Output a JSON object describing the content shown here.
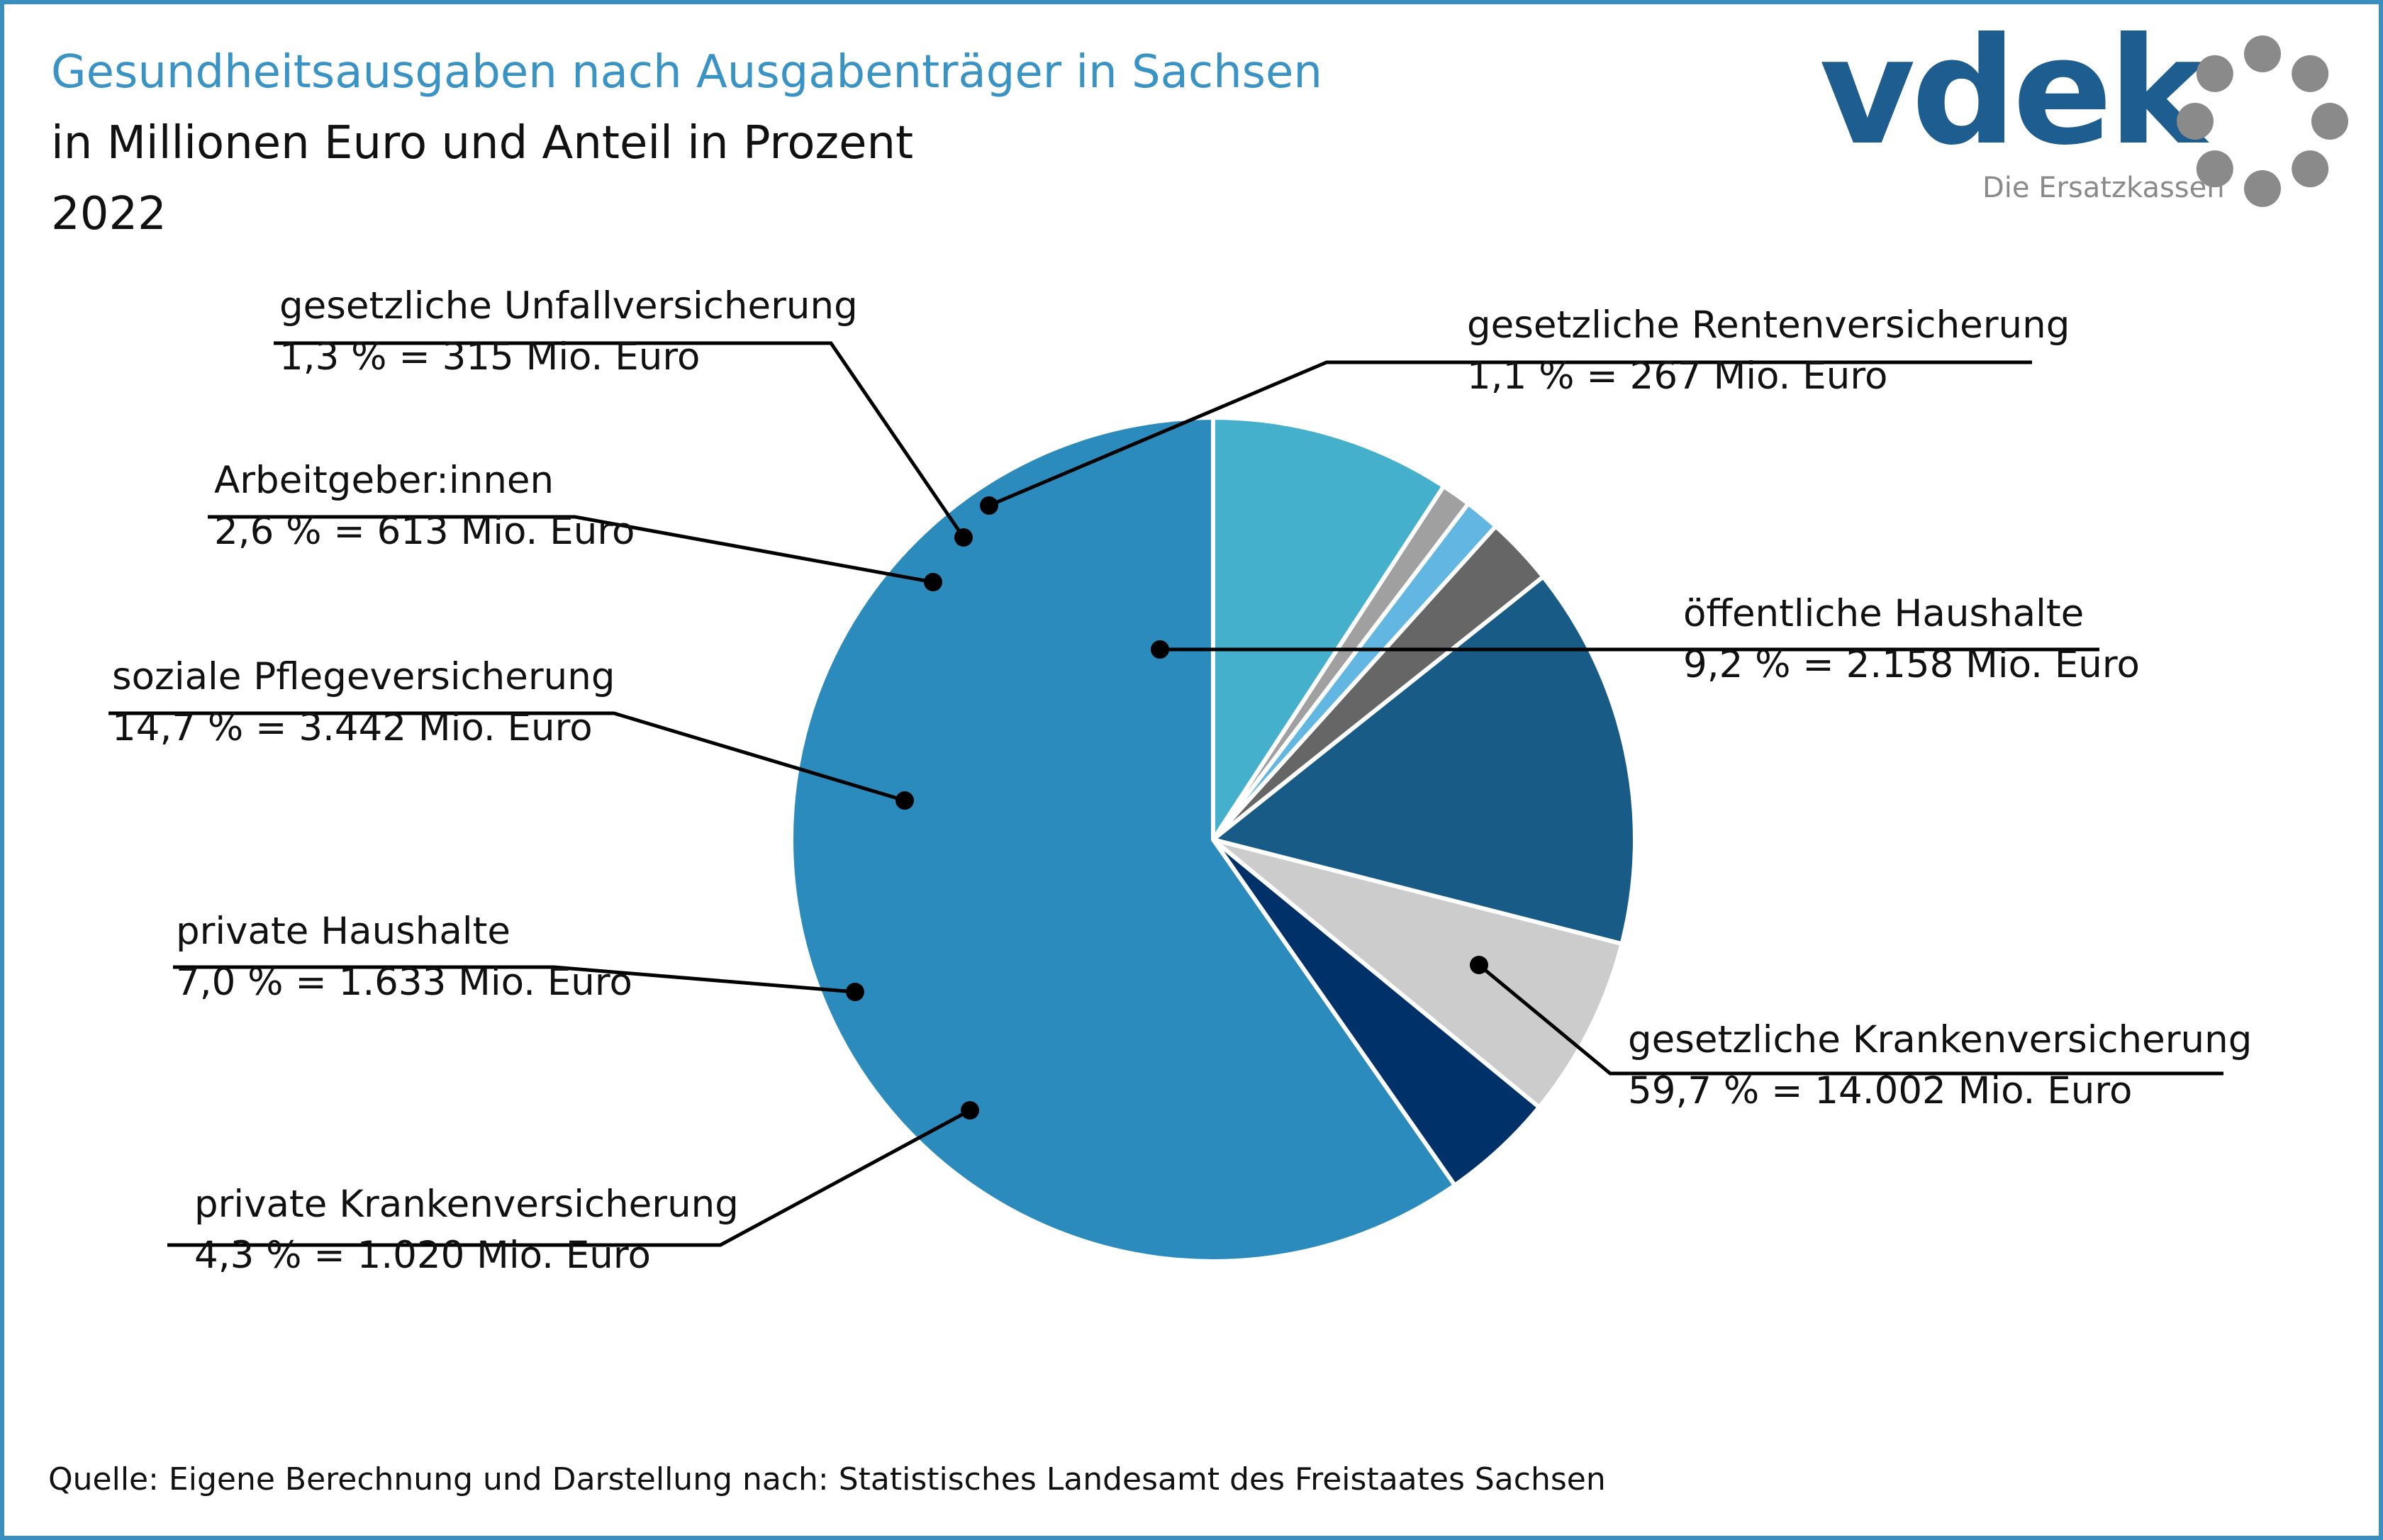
{
  "title": "Gesundheitsausgaben nach Ausgabenträger in Sachsen",
  "subtitle": "in Millionen Euro und Anteil in Prozent",
  "year": "2022",
  "source": "Quelle: Eigene Berechnung und Darstellung nach: Statistisches Landesamt des Freistaates Sachsen",
  "logo": {
    "name": "vdek",
    "tagline": "Die Ersatzkassen",
    "icon": "ring-of-dots-icon"
  },
  "colors": {
    "frame": "#3a8fbf",
    "title": "#3a93c5",
    "logo": "#1d5d90",
    "logo_gray": "#8a8a8a"
  },
  "chart_data": {
    "type": "pie",
    "unit": "Mio. Euro",
    "slices": [
      {
        "name": "gesetzliche Krankenversicherung",
        "percent": 59.7,
        "value": 14002,
        "label": "59,7 % = 14.002 Mio. Euro",
        "color": "#2b8bbd"
      },
      {
        "name": "private Krankenversicherung",
        "percent": 4.3,
        "value": 1020,
        "label": "4,3 % = 1.020 Mio. Euro",
        "color": "#003168"
      },
      {
        "name": "private Haushalte",
        "percent": 7.0,
        "value": 1633,
        "label": "7,0 % = 1.633 Mio. Euro",
        "color": "#cccccc"
      },
      {
        "name": "soziale Pflegeversicherung",
        "percent": 14.7,
        "value": 3442,
        "label": "14,7 % = 3.442 Mio. Euro",
        "color": "#195b87"
      },
      {
        "name": "Arbeitgeber:innen",
        "percent": 2.6,
        "value": 613,
        "label": "2,6 % = 613 Mio. Euro",
        "color": "#666666"
      },
      {
        "name": "gesetzliche Unfallversicherung",
        "percent": 1.3,
        "value": 315,
        "label": "1,3 % = 315 Mio. Euro",
        "color": "#61b6e2"
      },
      {
        "name": "gesetzliche Rentenversicherung",
        "percent": 1.1,
        "value": 267,
        "label": "1,1 % = 267 Mio. Euro",
        "color": "#a0a0a0"
      },
      {
        "name": "öffentliche Haushalte",
        "percent": 9.2,
        "value": 2158,
        "label": "9,2 % = 2.158 Mio. Euro",
        "color": "#44b0cc"
      }
    ]
  }
}
